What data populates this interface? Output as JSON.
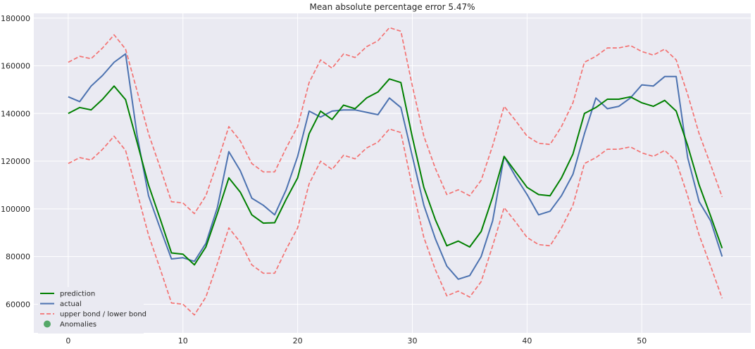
{
  "chart_data": {
    "type": "line",
    "title": "Mean absolute percentage error 5.47%",
    "xlabel": "",
    "ylabel": "",
    "xlim": [
      -3,
      59.5
    ],
    "ylim": [
      48000,
      182000
    ],
    "xticks": [
      0,
      10,
      20,
      30,
      40,
      50
    ],
    "yticks": [
      60000,
      80000,
      100000,
      120000,
      140000,
      160000,
      180000
    ],
    "grid": true,
    "legend_position": "lower-left",
    "x": [
      0,
      1,
      2,
      3,
      4,
      5,
      6,
      7,
      8,
      9,
      10,
      11,
      12,
      13,
      14,
      15,
      16,
      17,
      18,
      19,
      20,
      21,
      22,
      23,
      24,
      25,
      26,
      27,
      28,
      29,
      30,
      31,
      32,
      33,
      34,
      35,
      36,
      37,
      38,
      39,
      40,
      41,
      42,
      43,
      44,
      45,
      46,
      47,
      48,
      49,
      50,
      51,
      52,
      53,
      54,
      55,
      56,
      57
    ],
    "series": [
      {
        "name": "prediction",
        "color": "#008000",
        "style": "solid",
        "values": [
          140000,
          142500,
          141500,
          146000,
          151500,
          145800,
          128000,
          110000,
          96000,
          81500,
          81000,
          76500,
          84000,
          98000,
          113000,
          107000,
          97500,
          94000,
          94200,
          104000,
          113000,
          131500,
          141000,
          137500,
          143500,
          142000,
          146500,
          149000,
          154500,
          153000,
          130000,
          109000,
          95500,
          84500,
          86500,
          84000,
          90500,
          105000,
          122000,
          115500,
          109000,
          106000,
          105500,
          113000,
          123000,
          140000,
          142500,
          146000,
          146000,
          147000,
          144500,
          143000,
          145500,
          141000,
          126500,
          110000,
          97000,
          83500
        ]
      },
      {
        "name": "actual",
        "color": "#4c72b0",
        "style": "solid",
        "values": [
          147000,
          145000,
          151500,
          156000,
          161500,
          165000,
          131000,
          105500,
          92000,
          79000,
          79500,
          78000,
          85500,
          100500,
          124000,
          116000,
          104500,
          101500,
          97500,
          108000,
          122000,
          141000,
          138500,
          141000,
          141500,
          141500,
          140500,
          139500,
          146500,
          142500,
          122000,
          101500,
          87500,
          76000,
          70500,
          72000,
          80000,
          95000,
          122000,
          113500,
          106000,
          97500,
          99000,
          105500,
          114500,
          131500,
          146500,
          142000,
          143000,
          146500,
          152000,
          151500,
          155500,
          155500,
          121500,
          103000,
          95000,
          80000
        ]
      },
      {
        "name": "upper bond / lower bond",
        "color": "#f37272",
        "style": "dashed",
        "values": [
          161500,
          164000,
          163000,
          167500,
          173000,
          167000,
          149500,
          131500,
          117500,
          103000,
          102500,
          98000,
          105500,
          119500,
          134500,
          128500,
          119000,
          115500,
          115500,
          125500,
          134500,
          153000,
          162500,
          159000,
          165000,
          163500,
          168000,
          170500,
          176000,
          174500,
          151500,
          130500,
          117000,
          106000,
          108000,
          105500,
          112000,
          126500,
          143000,
          137000,
          130500,
          127500,
          127000,
          134500,
          144500,
          161500,
          164000,
          167500,
          167500,
          168500,
          166000,
          164500,
          167000,
          162500,
          148000,
          131500,
          118500,
          105000
        ]
      },
      {
        "name": "lower bond",
        "color": "#f37272",
        "style": "dashed",
        "values": [
          119000,
          121500,
          120500,
          125000,
          130500,
          124500,
          107000,
          89000,
          75000,
          60500,
          60000,
          55500,
          63000,
          77000,
          92000,
          86000,
          76500,
          73000,
          73000,
          83000,
          92000,
          110500,
          120000,
          116500,
          122500,
          121000,
          125500,
          128000,
          133500,
          132000,
          109000,
          88000,
          74500,
          63500,
          65500,
          63000,
          69500,
          84500,
          100500,
          94500,
          88000,
          85000,
          84500,
          92000,
          101500,
          119000,
          121500,
          125000,
          125000,
          126000,
          123500,
          122000,
          124500,
          120000,
          105500,
          89000,
          76000,
          62500
        ]
      }
    ],
    "legend": [
      {
        "label": "prediction",
        "kind": "solid-line",
        "color": "#008000"
      },
      {
        "label": "actual",
        "kind": "solid-line",
        "color": "#4c72b0"
      },
      {
        "label": "upper bond / lower bond",
        "kind": "dashed-line",
        "color": "#f37272"
      },
      {
        "label": "Anomalies",
        "kind": "marker",
        "color": "#55a868"
      }
    ]
  }
}
